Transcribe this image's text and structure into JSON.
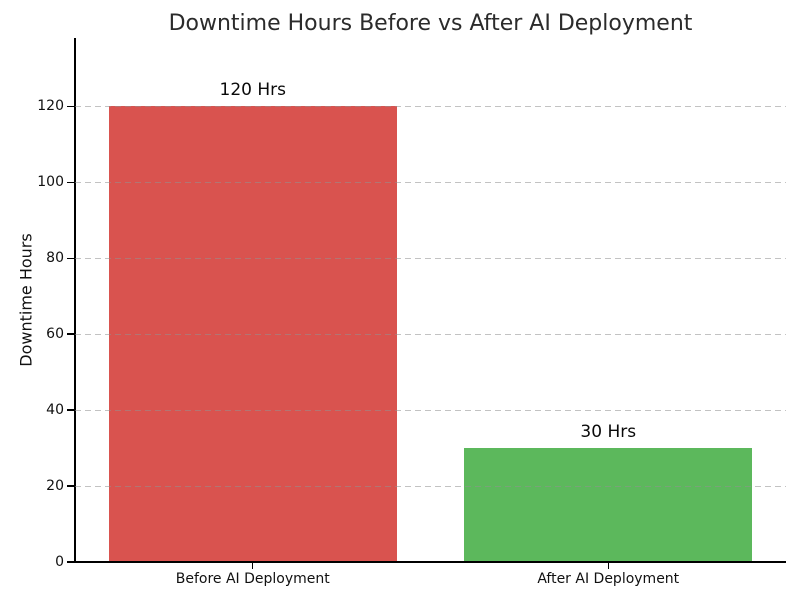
{
  "chart_data": {
    "type": "bar",
    "title": "Downtime Hours Before vs After AI Deployment",
    "categories": [
      "Before AI Deployment",
      "After AI Deployment"
    ],
    "values": [
      120,
      30
    ],
    "bar_labels": [
      "120 Hrs",
      "30 Hrs"
    ],
    "bar_colors": [
      "#d9534f",
      "#5cb85c"
    ],
    "xlabel": "",
    "ylabel": "Downtime Hours",
    "yticks": [
      0,
      20,
      40,
      60,
      80,
      100,
      120
    ],
    "ylim": [
      0,
      138
    ],
    "grid": "horizontal-dashed-over-bars",
    "legend": "none"
  },
  "colors": {
    "background": "#ffffff",
    "spine": "#000000",
    "grid": "#c9c9c9",
    "title_text": "#2b2b2b",
    "tick_text": "#111111"
  }
}
